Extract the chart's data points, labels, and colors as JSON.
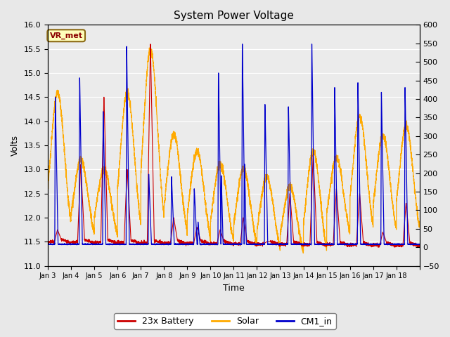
{
  "title": "System Power Voltage",
  "xlabel": "Time",
  "ylabel": "Volts",
  "ylim_left": [
    11.0,
    16.0
  ],
  "ylim_right": [
    -50,
    600
  ],
  "yticks_left": [
    11.0,
    11.5,
    12.0,
    12.5,
    13.0,
    13.5,
    14.0,
    14.5,
    15.0,
    15.5,
    16.0
  ],
  "yticks_right": [
    -50,
    0,
    50,
    100,
    150,
    200,
    250,
    300,
    350,
    400,
    450,
    500,
    550,
    600
  ],
  "bg_color": "#e8e8e8",
  "plot_bg_color": "#ebebeb",
  "line_colors": {
    "battery": "#cc0000",
    "solar": "#ffaa00",
    "cm1": "#0000cc"
  },
  "legend_labels": [
    "23x Battery",
    "Solar",
    "CM1_in"
  ],
  "vr_met_label": "VR_met",
  "n_days": 16,
  "points_per_day": 288
}
